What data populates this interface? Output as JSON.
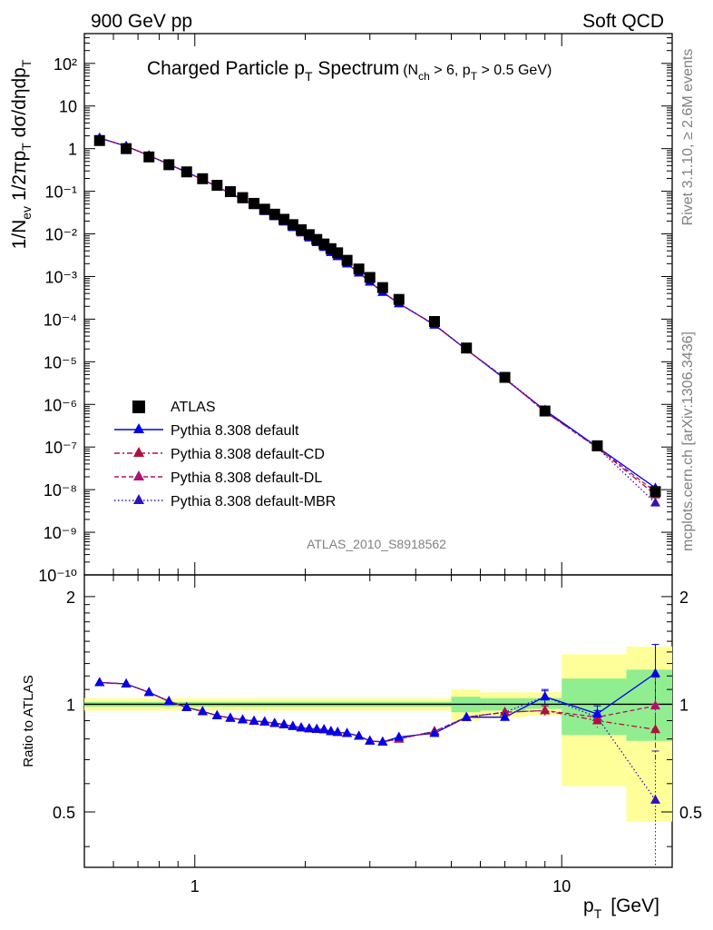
{
  "header": {
    "left": "900 GeV pp",
    "right": "Soft QCD"
  },
  "side_labels": {
    "rivet": "Rivet 3.1.10, ≥ 2.6M events",
    "mcplots": "mcplots.cern.ch [arXiv:1306.3436]"
  },
  "analysis_id": "ATLAS_2010_S8918562",
  "colors": {
    "data": "#000000",
    "default": "#0000ee",
    "cd": "#b0103f",
    "dl": "#b01070",
    "mbr": "#3010c0",
    "band_yellow": "#ffff99",
    "band_green": "#90ee90"
  },
  "chart_data": [
    {
      "type": "scatter",
      "panel": "main",
      "title": "Charged Particle p",
      "title_sub": "T",
      "title_rest": " Spectrum",
      "cuts": {
        "a": "(N",
        "a_sub": "ch",
        "b": " > 6, p",
        "b_sub": "T",
        "c": " > 0.5 GeV)"
      },
      "ylabel": "1/N_ev 1/2πp_T dσ/dηdp_T",
      "ylabel_parts": {
        "p1": "1/N",
        "s1": "ev",
        "p2": " 1/2πp",
        "s2": "T",
        "p3": " dσ/dηdp",
        "s3": "T"
      },
      "yscale": "log",
      "xscale": "log",
      "xlim": [
        0.5,
        20
      ],
      "ylim": [
        1e-10,
        500
      ],
      "y_ticks": [
        "10⁻¹⁰",
        "10⁻⁹",
        "10⁻⁸",
        "10⁻⁷",
        "10⁻⁶",
        "10⁻⁵",
        "10⁻⁴",
        "10⁻³",
        "10⁻²",
        "10⁻¹",
        "1",
        "10",
        "10²"
      ],
      "x": [
        0.55,
        0.65,
        0.75,
        0.85,
        0.95,
        1.05,
        1.15,
        1.25,
        1.35,
        1.45,
        1.55,
        1.65,
        1.75,
        1.85,
        1.95,
        2.05,
        2.15,
        2.25,
        2.35,
        2.45,
        2.6,
        2.8,
        3.0,
        3.25,
        3.6,
        4.5,
        5.5,
        7.0,
        9.0,
        12.5,
        18.0
      ],
      "series": [
        {
          "name": "ATLAS",
          "marker": "square",
          "values": [
            1.55,
            1.0,
            0.64,
            0.42,
            0.285,
            0.197,
            0.138,
            0.098,
            0.071,
            0.052,
            0.038,
            0.029,
            0.022,
            0.0165,
            0.0125,
            0.0096,
            0.0074,
            0.0058,
            0.0045,
            0.0036,
            0.0024,
            0.0015,
            0.00095,
            0.00055,
            0.00029,
            8.8e-05,
            2.1e-05,
            4.3e-06,
            7e-07,
            1.07e-07,
            9e-09
          ]
        },
        {
          "name": "Pythia 8.308 default",
          "marker": "triangle",
          "line": "solid",
          "values": [
            1.78,
            1.14,
            0.69,
            0.43,
            0.28,
            0.188,
            0.128,
            0.0898,
            0.0641,
            0.0467,
            0.0339,
            0.0256,
            0.0193,
            0.0143,
            0.0107,
            0.0082,
            0.0063,
            0.0049,
            0.0037,
            0.00298,
            0.002,
            0.00122,
            0.00075,
            0.00043,
            0.000235,
            7.3e-05,
            1.93e-05,
            3.95e-06,
            7.3e-07,
            1.01e-07,
            1.1e-08
          ]
        },
        {
          "name": "Pythia 8.308 default-CD",
          "marker": "triangle",
          "line": "dashdot",
          "values": [
            1.78,
            1.14,
            0.69,
            0.43,
            0.28,
            0.188,
            0.128,
            0.0898,
            0.0641,
            0.0467,
            0.0339,
            0.0256,
            0.0193,
            0.0143,
            0.0107,
            0.0082,
            0.0063,
            0.0049,
            0.0037,
            0.00298,
            0.002,
            0.00122,
            0.00075,
            0.00043,
            0.000232,
            7.4e-05,
            1.93e-05,
            4.1e-06,
            6.7e-07,
            9.6e-08,
            7.6e-09
          ]
        },
        {
          "name": "Pythia 8.308 default-DL",
          "marker": "triangle",
          "line": "dashed",
          "values": [
            1.78,
            1.14,
            0.69,
            0.43,
            0.28,
            0.188,
            0.128,
            0.0898,
            0.0641,
            0.0467,
            0.0339,
            0.0256,
            0.0193,
            0.0143,
            0.0107,
            0.0082,
            0.0063,
            0.0049,
            0.0037,
            0.00298,
            0.002,
            0.00122,
            0.00075,
            0.00043,
            0.000232,
            7.4e-05,
            1.93e-05,
            4.1e-06,
            6.7e-07,
            9.8e-08,
            8.9e-09
          ]
        },
        {
          "name": "Pythia 8.308 default-MBR",
          "marker": "triangle",
          "line": "dotted",
          "values": [
            1.78,
            1.14,
            0.69,
            0.43,
            0.28,
            0.188,
            0.128,
            0.0898,
            0.0641,
            0.0467,
            0.0339,
            0.0256,
            0.0193,
            0.0143,
            0.0107,
            0.0082,
            0.0063,
            0.0049,
            0.0037,
            0.00298,
            0.002,
            0.00122,
            0.00075,
            0.00043,
            0.000232,
            7.4e-05,
            1.93e-05,
            4.1e-06,
            7.3e-07,
            9.6e-08,
            4.9e-09
          ]
        }
      ]
    },
    {
      "type": "scatter",
      "panel": "ratio",
      "ylabel": "Ratio to ATLAS",
      "xlabel": "p",
      "xlabel_sub": "T",
      "xlabel_unit": "[GeV]",
      "xscale": "log",
      "xlim": [
        0.5,
        20
      ],
      "ylim": [
        0.35,
        2.3
      ],
      "y_ticks": [
        0.5,
        1,
        2
      ],
      "x_ticks": [
        1,
        10
      ],
      "x": [
        0.55,
        0.65,
        0.75,
        0.85,
        0.95,
        1.05,
        1.15,
        1.25,
        1.35,
        1.45,
        1.55,
        1.65,
        1.75,
        1.85,
        1.95,
        2.05,
        2.15,
        2.25,
        2.35,
        2.45,
        2.6,
        2.8,
        3.0,
        3.25,
        3.6,
        4.5,
        5.5,
        7.0,
        9.0,
        12.5,
        18.0
      ],
      "series": [
        {
          "name": "Pythia 8.308 default",
          "values": [
            1.15,
            1.14,
            1.08,
            1.02,
            0.98,
            0.955,
            0.93,
            0.915,
            0.905,
            0.898,
            0.893,
            0.885,
            0.878,
            0.868,
            0.86,
            0.855,
            0.852,
            0.85,
            0.84,
            0.835,
            0.83,
            0.815,
            0.79,
            0.785,
            0.81,
            0.83,
            0.92,
            0.92,
            1.05,
            0.94,
            1.22
          ],
          "err": [
            0,
            0,
            0,
            0,
            0,
            0,
            0,
            0,
            0,
            0,
            0,
            0,
            0,
            0,
            0,
            0,
            0,
            0,
            0,
            0,
            0,
            0,
            0,
            0,
            0,
            0,
            0,
            0,
            0.05,
            0.05,
            0.25
          ]
        },
        {
          "name": "Pythia 8.308 default-CD",
          "values": [
            1.15,
            1.14,
            1.08,
            1.02,
            0.98,
            0.955,
            0.93,
            0.915,
            0.905,
            0.898,
            0.893,
            0.885,
            0.878,
            0.868,
            0.86,
            0.855,
            0.852,
            0.85,
            0.84,
            0.835,
            0.83,
            0.815,
            0.79,
            0.785,
            0.8,
            0.84,
            0.92,
            0.95,
            0.96,
            0.9,
            0.85
          ],
          "err": [
            0,
            0,
            0,
            0,
            0,
            0,
            0,
            0,
            0,
            0,
            0,
            0,
            0,
            0,
            0,
            0,
            0,
            0,
            0,
            0,
            0,
            0,
            0,
            0,
            0,
            0,
            0,
            0,
            0.03,
            0.04,
            0.15
          ]
        },
        {
          "name": "Pythia 8.308 default-DL",
          "values": [
            1.15,
            1.14,
            1.08,
            1.02,
            0.98,
            0.955,
            0.93,
            0.915,
            0.905,
            0.898,
            0.893,
            0.885,
            0.878,
            0.868,
            0.86,
            0.855,
            0.852,
            0.85,
            0.84,
            0.835,
            0.83,
            0.815,
            0.79,
            0.785,
            0.8,
            0.84,
            0.92,
            0.95,
            0.96,
            0.92,
            0.99
          ],
          "err": [
            0,
            0,
            0,
            0,
            0,
            0,
            0,
            0,
            0,
            0,
            0,
            0,
            0,
            0,
            0,
            0,
            0,
            0,
            0,
            0,
            0,
            0,
            0,
            0,
            0,
            0,
            0,
            0,
            0.03,
            0.04,
            0.2
          ]
        },
        {
          "name": "Pythia 8.308 default-MBR",
          "values": [
            1.15,
            1.14,
            1.08,
            1.02,
            0.98,
            0.955,
            0.93,
            0.915,
            0.905,
            0.898,
            0.893,
            0.885,
            0.878,
            0.868,
            0.86,
            0.855,
            0.852,
            0.85,
            0.84,
            0.835,
            0.83,
            0.815,
            0.79,
            0.785,
            0.8,
            0.84,
            0.92,
            0.95,
            1.05,
            0.92,
            0.54
          ],
          "err": [
            0,
            0,
            0,
            0,
            0,
            0,
            0,
            0,
            0,
            0,
            0,
            0,
            0,
            0,
            0,
            0,
            0,
            0,
            0,
            0,
            0,
            0,
            0,
            0,
            0,
            0,
            0,
            0,
            0.04,
            0.04,
            0.2
          ]
        }
      ],
      "uncertainty_bands": [
        {
          "x0": 0.5,
          "x1": 5.0,
          "yellow": [
            0.96,
            1.04
          ],
          "green": [
            0.985,
            1.015
          ]
        },
        {
          "x0": 5.0,
          "x1": 6.0,
          "yellow": [
            0.9,
            1.1
          ],
          "green": [
            0.95,
            1.05
          ]
        },
        {
          "x0": 6.0,
          "x1": 8.0,
          "yellow": [
            0.92,
            1.08
          ],
          "green": [
            0.96,
            1.04
          ]
        },
        {
          "x0": 8.0,
          "x1": 10.0,
          "yellow": [
            0.93,
            1.08
          ],
          "green": [
            0.97,
            1.04
          ]
        },
        {
          "x0": 10.0,
          "x1": 15.0,
          "yellow": [
            0.59,
            1.38
          ],
          "green": [
            0.82,
            1.18
          ]
        },
        {
          "x0": 15.0,
          "x1": 20.0,
          "yellow": [
            0.47,
            1.45
          ],
          "green": [
            0.79,
            1.25
          ]
        }
      ]
    }
  ]
}
